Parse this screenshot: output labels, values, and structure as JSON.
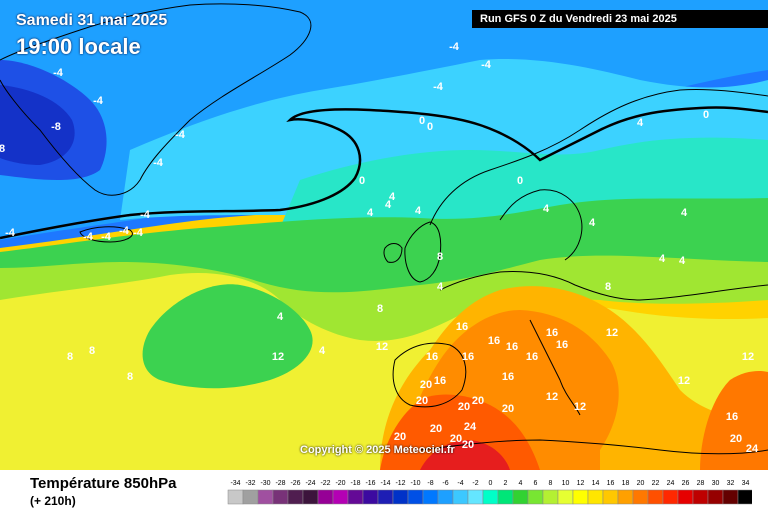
{
  "header": {
    "date": "Samedi 31 mai 2025",
    "local_time": "19:00 locale",
    "run_info": "Run GFS 0 Z du Vendredi 23 mai 2025"
  },
  "copyright": "Copyright © 2025 Meteociel.fr",
  "field": {
    "name": "Température 850hPa",
    "forecast_offset": "(+ 210h)"
  },
  "scale": {
    "ticks": [
      "-34",
      "-32",
      "-30",
      "-28",
      "-26",
      "-24",
      "-22",
      "-20",
      "-18",
      "-16",
      "-14",
      "-12",
      "-10",
      "-8",
      "-6",
      "-4",
      "-2",
      "0",
      "2",
      "4",
      "6",
      "8",
      "10",
      "12",
      "14",
      "16",
      "18",
      "20",
      "22",
      "24",
      "26",
      "28",
      "30",
      "32",
      "34"
    ],
    "colors": [
      "#c8c8c8",
      "#a0a0a0",
      "#a050a0",
      "#783278",
      "#501e50",
      "#3c143c",
      "#960096",
      "#b400b4",
      "#640a96",
      "#3c0aa0",
      "#1e1eb4",
      "#0032c8",
      "#0050e6",
      "#0078ff",
      "#1ea0ff",
      "#3cc8ff",
      "#64e6ff",
      "#00ffc8",
      "#00e678",
      "#32d232",
      "#78e632",
      "#b4f032",
      "#e6ff32",
      "#ffff00",
      "#ffe600",
      "#ffc800",
      "#ffa000",
      "#ff7800",
      "#ff5000",
      "#ff2800",
      "#e60000",
      "#be0000",
      "#960000",
      "#640000",
      "#000000"
    ]
  },
  "contour_labels": [
    {
      "t": "-4"
    },
    {
      "t": "-4"
    },
    {
      "t": "-4"
    },
    {
      "t": "-4"
    },
    {
      "t": "-8"
    },
    {
      "t": "-4"
    },
    {
      "t": "-4"
    },
    {
      "t": "-4"
    },
    {
      "t": "-4"
    },
    {
      "t": "-4"
    },
    {
      "t": "-4"
    },
    {
      "t": "-4"
    },
    {
      "t": "-4"
    },
    {
      "t": "-4"
    },
    {
      "t": "8"
    },
    {
      "t": "0"
    },
    {
      "t": "0"
    },
    {
      "t": "0"
    },
    {
      "t": "0"
    },
    {
      "t": "0"
    },
    {
      "t": "4"
    },
    {
      "t": "4"
    },
    {
      "t": "4"
    },
    {
      "t": "4"
    },
    {
      "t": "4"
    },
    {
      "t": "4"
    },
    {
      "t": "4"
    },
    {
      "t": "4"
    },
    {
      "t": "4"
    },
    {
      "t": "4"
    },
    {
      "t": "4"
    },
    {
      "t": "4"
    },
    {
      "t": "4"
    },
    {
      "t": "8"
    },
    {
      "t": "8"
    },
    {
      "t": "8"
    },
    {
      "t": "8"
    },
    {
      "t": "8"
    },
    {
      "t": "8"
    },
    {
      "t": "12"
    },
    {
      "t": "12"
    },
    {
      "t": "12"
    },
    {
      "t": "12"
    },
    {
      "t": "12"
    },
    {
      "t": "12"
    },
    {
      "t": "12"
    },
    {
      "t": "16"
    },
    {
      "t": "16"
    },
    {
      "t": "16"
    },
    {
      "t": "16"
    },
    {
      "t": "16"
    },
    {
      "t": "16"
    },
    {
      "t": "16"
    },
    {
      "t": "16"
    },
    {
      "t": "16"
    },
    {
      "t": "16"
    },
    {
      "t": "16"
    },
    {
      "t": "20"
    },
    {
      "t": "20"
    },
    {
      "t": "20"
    },
    {
      "t": "20"
    },
    {
      "t": "20"
    },
    {
      "t": "20"
    },
    {
      "t": "20"
    },
    {
      "t": "20"
    },
    {
      "t": "20"
    },
    {
      "t": "20"
    },
    {
      "t": "24"
    },
    {
      "t": "24"
    }
  ]
}
